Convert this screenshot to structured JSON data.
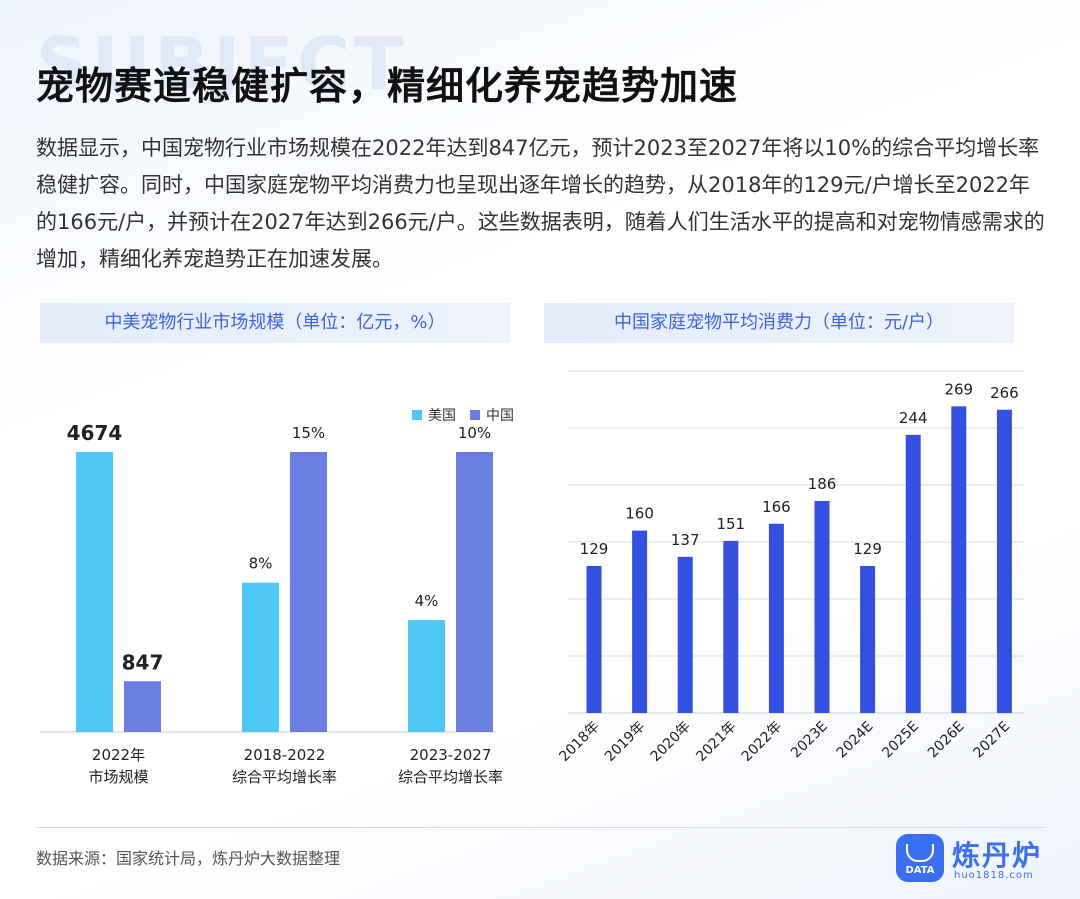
{
  "bg_word": "SUBJECT",
  "title": "宠物赛道稳健扩容，精细化养宠趋势加速",
  "intro": "数据显示，中国宠物行业市场规模在2022年达到847亿元，预计2023至2027年将以10%的综合平均增长率稳健扩容。同时，中国家庭宠物平均消费力也呈现出逐年增长的趋势，从2018年的129元/户增长至2022年的166元/户，并预计在2027年达到266元/户。这些数据表明，随着人们生活水平的提高和对宠物情感需求的增加，精细化养宠趋势正在加速发展。",
  "source": "数据来源：国家统计局，炼丹炉大数据整理",
  "logo": {
    "name": "炼丹炉",
    "badge": "DATA",
    "url": "huo1818.com"
  },
  "colors": {
    "us": "#4fc8f5",
    "cn": "#6b7fe3",
    "bar": "#3450e0",
    "accent": "#3d63d8"
  },
  "chart_data": [
    {
      "type": "bar",
      "title": "中美宠物行业市场规模（单位：亿元，%）",
      "categories": [
        [
          "2022年",
          "市场规模"
        ],
        [
          "2018-2022",
          "综合平均增长率"
        ],
        [
          "2023-2027",
          "综合平均增长率"
        ]
      ],
      "series": [
        {
          "name": "美国",
          "values": [
            4674,
            8,
            4
          ],
          "labels": [
            "4674",
            "8%",
            "4%"
          ]
        },
        {
          "name": "中国",
          "values": [
            847,
            15,
            10
          ],
          "labels": [
            "847",
            "15%",
            "10%"
          ]
        }
      ],
      "legend": "top-right"
    },
    {
      "type": "bar",
      "title": "中国家庭宠物平均消费力（单位：元/户）",
      "categories": [
        "2018年",
        "2019年",
        "2020年",
        "2021年",
        "2022年",
        "2023E",
        "2024E",
        "2025E",
        "2026E",
        "2027E"
      ],
      "values": [
        129,
        160,
        137,
        151,
        166,
        186,
        129,
        244,
        269,
        266
      ],
      "ylim": [
        0,
        300
      ],
      "grid": true
    }
  ]
}
